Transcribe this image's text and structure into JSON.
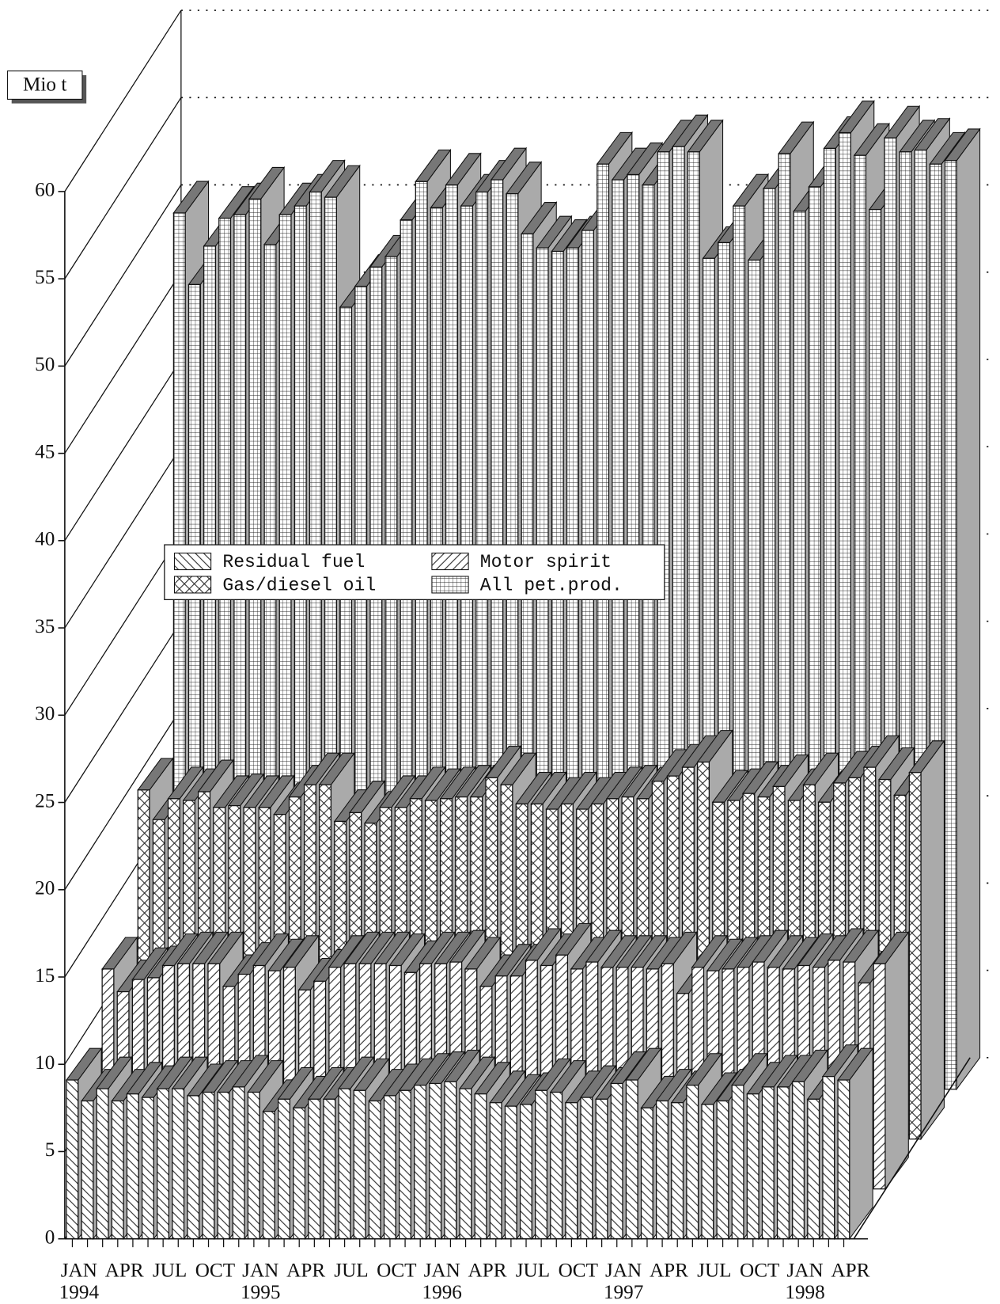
{
  "chart_data": {
    "type": "bar3d",
    "y_label": "Mio t",
    "categories": [
      "JAN 1994",
      null,
      null,
      "APR",
      null,
      null,
      "JUL",
      null,
      null,
      "OCT",
      null,
      null,
      "JAN 1995",
      null,
      null,
      "APR",
      null,
      null,
      "JUL",
      null,
      null,
      "OCT",
      null,
      null,
      "JAN 1996",
      null,
      null,
      "APR",
      null,
      null,
      "JUL",
      null,
      null,
      "OCT",
      null,
      null,
      "JAN 1997",
      null,
      null,
      "APR",
      null,
      null,
      "JUL",
      null,
      null,
      "OCT",
      null,
      null,
      "JAN 1998",
      null,
      null,
      "APR"
    ],
    "series": [
      {
        "name": "Residual fuel",
        "color": "#ffffff",
        "hatch": "backslash",
        "values": [
          9.1,
          7.9,
          8.6,
          7.9,
          8.3,
          8.1,
          8.6,
          8.6,
          8.2,
          8.4,
          8.4,
          8.7,
          8.4,
          7.3,
          8.0,
          7.5,
          8.0,
          8.0,
          8.6,
          8.5,
          7.9,
          8.2,
          8.5,
          8.8,
          8.9,
          9.0,
          8.6,
          8.3,
          7.8,
          7.6,
          7.7,
          8.5,
          8.4,
          7.8,
          8.1,
          8.0,
          8.9,
          9.1,
          7.5,
          7.9,
          7.8,
          8.8,
          7.7,
          7.9,
          8.8,
          8.3,
          8.7,
          8.7,
          9.0,
          8.0,
          9.3,
          9.1
        ]
      },
      {
        "name": "Motor spirit",
        "color": "#ffffff",
        "hatch": "slash",
        "values": [
          12.6,
          11.3,
          12.0,
          12.1,
          12.8,
          12.9,
          12.9,
          12.9,
          11.6,
          12.3,
          12.8,
          12.5,
          12.7,
          11.4,
          11.9,
          12.7,
          12.9,
          12.9,
          12.9,
          12.8,
          12.4,
          12.9,
          12.9,
          13.0,
          12.6,
          11.6,
          12.2,
          12.2,
          13.1,
          12.8,
          13.4,
          12.6,
          13.0,
          12.7,
          12.7,
          12.7,
          12.6,
          12.9,
          11.2,
          12.7,
          12.5,
          12.6,
          12.7,
          13.0,
          12.7,
          12.6,
          12.8,
          12.7,
          13.1,
          13.0,
          11.8,
          12.9
        ]
      },
      {
        "name": "Gas/diesel oil",
        "color": "#ffffff",
        "hatch": "cross",
        "values": [
          20.0,
          18.3,
          19.5,
          19.4,
          19.9,
          19.0,
          19.1,
          19.0,
          19.0,
          18.6,
          19.6,
          20.3,
          20.3,
          18.2,
          18.7,
          18.1,
          19.0,
          19.0,
          19.5,
          19.4,
          19.5,
          19.6,
          19.6,
          20.7,
          20.3,
          19.2,
          19.2,
          18.9,
          19.2,
          18.9,
          19.2,
          19.5,
          19.6,
          19.5,
          20.5,
          20.8,
          21.3,
          21.6,
          19.3,
          19.4,
          19.8,
          19.6,
          20.2,
          19.4,
          20.3,
          19.3,
          20.4,
          20.7,
          21.3,
          20.6,
          19.7,
          21.0
        ]
      },
      {
        "name": "All pet.prod.",
        "color": "#ffffff",
        "hatch": "grid",
        "values": [
          50.2,
          46.1,
          48.3,
          49.9,
          50.1,
          51.0,
          48.4,
          50.1,
          50.6,
          51.4,
          51.1,
          44.8,
          46.0,
          47.1,
          47.7,
          49.8,
          52.0,
          50.5,
          51.8,
          50.6,
          51.4,
          52.1,
          51.3,
          49.0,
          48.2,
          48.0,
          48.2,
          49.2,
          53.0,
          52.1,
          52.4,
          51.8,
          53.7,
          54.0,
          53.7,
          47.6,
          48.5,
          50.6,
          47.5,
          51.6,
          53.6,
          50.3,
          51.7,
          53.9,
          54.8,
          53.5,
          50.4,
          54.5,
          53.7,
          53.8,
          53.0,
          53.2
        ]
      }
    ],
    "ylim": [
      0,
      60
    ],
    "yticks": [
      0,
      5,
      10,
      15,
      20,
      25,
      30,
      35,
      40,
      45,
      50,
      55,
      60
    ],
    "grid": true,
    "top_face_color": "#777777",
    "side_face_color": "#aaaaaa"
  }
}
